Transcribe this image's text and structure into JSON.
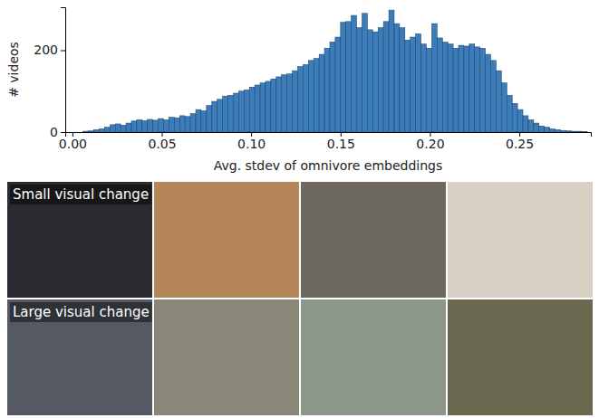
{
  "chart_data": {
    "type": "histogram",
    "xlabel": "Avg. stdev of omnivore embeddings",
    "ylabel": "# videos",
    "bins": [
      0.006,
      0.009,
      0.012,
      0.015,
      0.018,
      0.021,
      0.024,
      0.027,
      0.03,
      0.033,
      0.036,
      0.039,
      0.042,
      0.045,
      0.048,
      0.051,
      0.054,
      0.057,
      0.06,
      0.063,
      0.066,
      0.069,
      0.072,
      0.075,
      0.078,
      0.081,
      0.084,
      0.087,
      0.09,
      0.093,
      0.096,
      0.099,
      0.102,
      0.105,
      0.108,
      0.111,
      0.114,
      0.117,
      0.12,
      0.123,
      0.126,
      0.129,
      0.132,
      0.135,
      0.138,
      0.141,
      0.144,
      0.147,
      0.15,
      0.153,
      0.156,
      0.159,
      0.162,
      0.165,
      0.168,
      0.171,
      0.174,
      0.177,
      0.18,
      0.183,
      0.186,
      0.189,
      0.192,
      0.195,
      0.198,
      0.201,
      0.204,
      0.207,
      0.21,
      0.213,
      0.216,
      0.219,
      0.222,
      0.225,
      0.228,
      0.231,
      0.234,
      0.237,
      0.24,
      0.243,
      0.246,
      0.249,
      0.252,
      0.255,
      0.258,
      0.261,
      0.264,
      0.267,
      0.27,
      0.273,
      0.276,
      0.279,
      0.282,
      0.285,
      0.288
    ],
    "values": [
      2,
      3,
      6,
      8,
      12,
      18,
      20,
      17,
      22,
      27,
      30,
      28,
      31,
      29,
      33,
      30,
      36,
      35,
      40,
      38,
      45,
      55,
      52,
      65,
      75,
      80,
      88,
      90,
      95,
      100,
      103,
      110,
      115,
      120,
      124,
      130,
      135,
      140,
      142,
      150,
      160,
      165,
      175,
      180,
      190,
      205,
      220,
      232,
      268,
      270,
      285,
      255,
      290,
      250,
      245,
      255,
      270,
      298,
      265,
      255,
      225,
      232,
      240,
      215,
      205,
      265,
      230,
      220,
      215,
      205,
      212,
      210,
      215,
      208,
      205,
      190,
      175,
      150,
      120,
      90,
      70,
      55,
      40,
      30,
      22,
      15,
      12,
      8,
      6,
      4,
      3,
      2,
      2,
      1
    ],
    "color": "#3b7dbb",
    "xlim": [
      -0.004,
      0.29
    ],
    "ylim": [
      0,
      305
    ],
    "xticks": [
      {
        "value": 0,
        "label": "0.00"
      },
      0.05,
      {
        "value": 0.1,
        "label": "0.10"
      },
      0.15,
      {
        "value": 0.2,
        "label": "0.20"
      },
      0.25
    ],
    "yticks": [
      0,
      200
    ]
  },
  "images": {
    "rows": [
      {
        "label": "Small visual change"
      },
      {
        "label": "Large visual change"
      }
    ]
  }
}
